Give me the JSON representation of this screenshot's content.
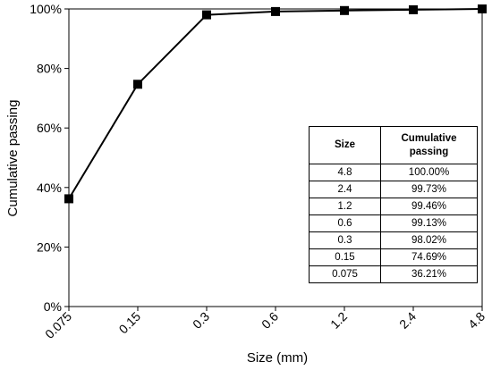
{
  "chart_data": {
    "type": "line",
    "title": "",
    "xlabel": "Size (mm)",
    "ylabel": "Cumulative passing",
    "x_scale": "log",
    "categories": [
      "0.075",
      "0.15",
      "0.3",
      "0.6",
      "1.2",
      "2.4",
      "4.8"
    ],
    "x": [
      0.075,
      0.15,
      0.3,
      0.6,
      1.2,
      2.4,
      4.8
    ],
    "y_ticks": [
      "0%",
      "20%",
      "40%",
      "60%",
      "80%",
      "100%"
    ],
    "ylim": [
      0,
      100
    ],
    "series": [
      {
        "values": [
          36.21,
          74.69,
          98.02,
          99.13,
          99.46,
          99.73,
          100.0
        ],
        "color": "#000000",
        "marker": "square"
      }
    ],
    "grid": false,
    "legend": "none"
  },
  "table": {
    "headers": [
      "Size",
      "Cumulative passing"
    ],
    "rows": [
      [
        "4.8",
        "100.00%"
      ],
      [
        "2.4",
        "99.73%"
      ],
      [
        "1.2",
        "99.46%"
      ],
      [
        "0.6",
        "99.13%"
      ],
      [
        "0.3",
        "98.02%"
      ],
      [
        "0.15",
        "74.69%"
      ],
      [
        "0.075",
        "36.21%"
      ]
    ]
  }
}
